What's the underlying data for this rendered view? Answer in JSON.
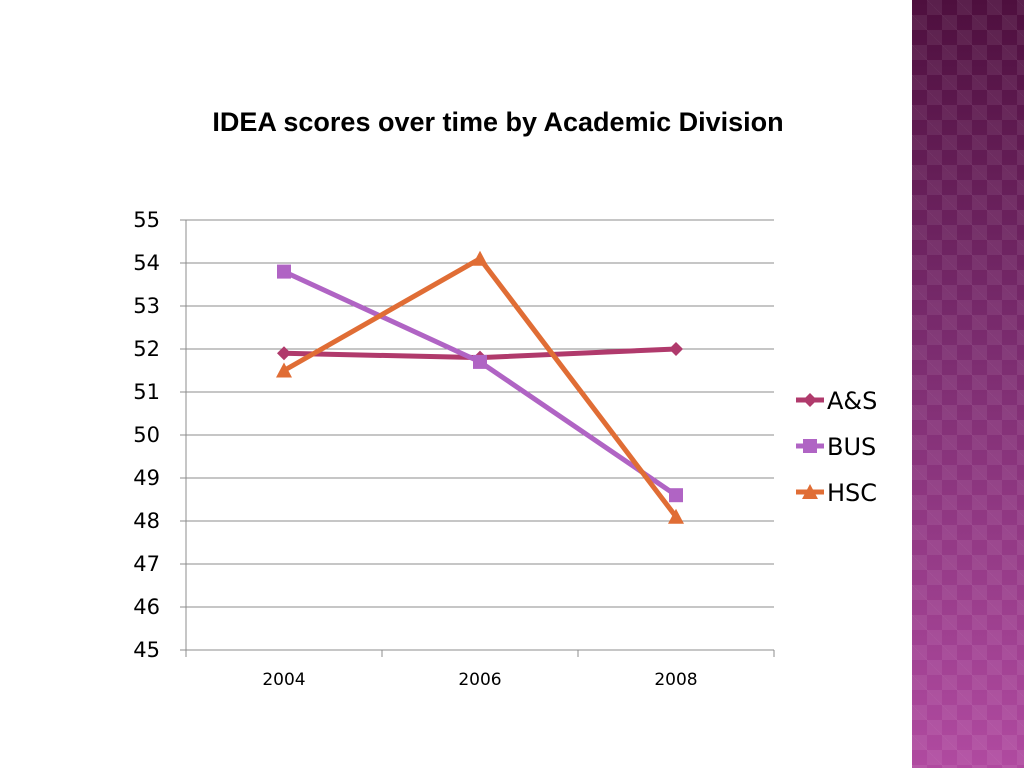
{
  "chart_data": {
    "type": "line",
    "title": "IDEA scores over time by Academic Division",
    "xlabel": "",
    "ylabel": "",
    "categories": [
      "2004",
      "2006",
      "2008"
    ],
    "ylim": [
      45,
      55
    ],
    "yticks": [
      45,
      46,
      47,
      48,
      49,
      50,
      51,
      52,
      53,
      54,
      55
    ],
    "grid": true,
    "legend_position": "right",
    "series": [
      {
        "name": "A&S",
        "values": [
          51.9,
          51.8,
          52.0
        ],
        "color": "#b03a6c",
        "marker": "diamond"
      },
      {
        "name": "BUS",
        "values": [
          53.8,
          51.7,
          48.6
        ],
        "color": "#b064c4",
        "marker": "square"
      },
      {
        "name": "HSC",
        "values": [
          51.5,
          54.1,
          48.1
        ],
        "color": "#e06d35",
        "marker": "triangle"
      }
    ]
  },
  "decor": {
    "side_band_color": "#7a2a6e"
  }
}
